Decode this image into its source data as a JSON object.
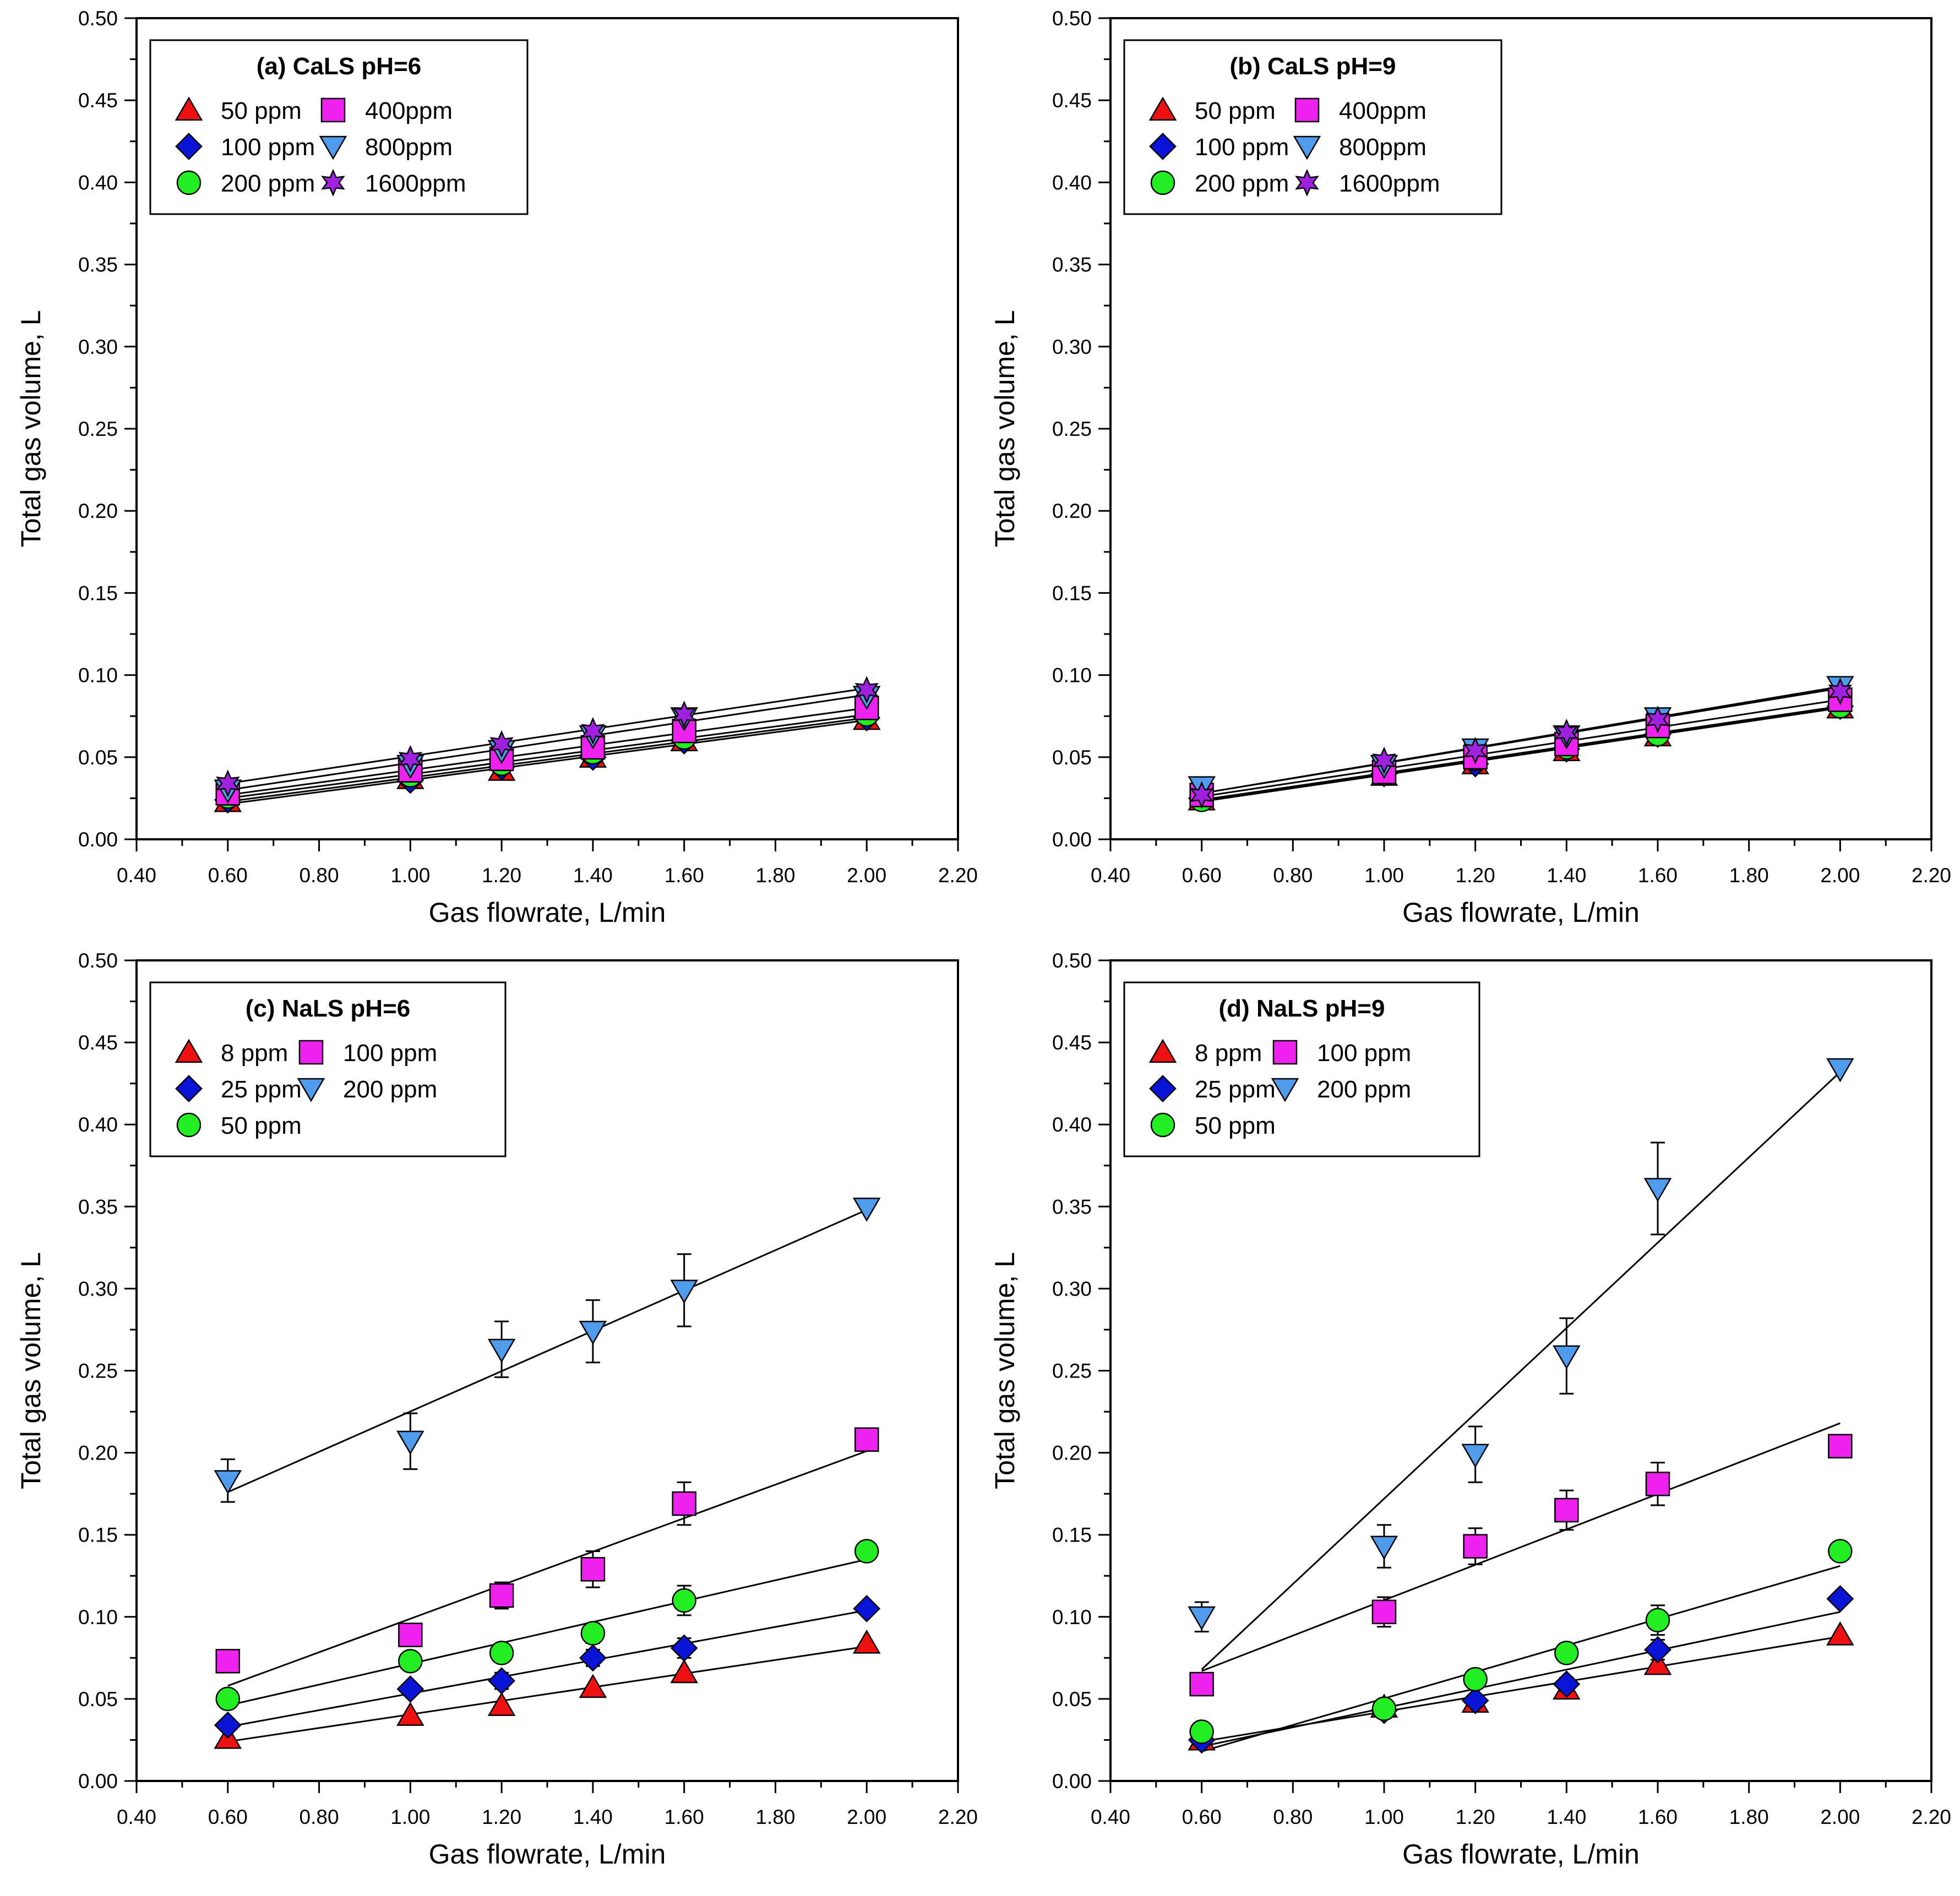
{
  "colors": {
    "red": "#ee1111",
    "blue": "#0a14d6",
    "green": "#22ee22",
    "magenta": "#ee22ee",
    "lightblue": "#4f9bec",
    "purple": "#a020e0"
  },
  "chart_data": [
    {
      "type": "scatter",
      "title": "(a) CaLS pH=6",
      "xlabel": "Gas flowrate, L/min",
      "ylabel": "Total gas volume, L",
      "xlim": [
        0.4,
        2.2
      ],
      "ylim": [
        0.0,
        0.5
      ],
      "x_ticks": [
        "0.40",
        "0.60",
        "0.80",
        "1.00",
        "1.20",
        "1.40",
        "1.60",
        "1.80",
        "2.00",
        "2.20"
      ],
      "y_ticks": [
        "0.00",
        "0.05",
        "0.10",
        "0.15",
        "0.20",
        "0.25",
        "0.30",
        "0.35",
        "0.40",
        "0.45",
        "0.50"
      ],
      "legend_position": "top-left",
      "series": [
        {
          "name": "50 ppm",
          "marker": "triangle-up",
          "color": "red",
          "x": [
            0.6,
            1.0,
            1.2,
            1.4,
            1.6,
            2.0
          ],
          "y": [
            0.023,
            0.037,
            0.042,
            0.05,
            0.06,
            0.073
          ],
          "err": [
            0,
            0,
            0,
            0,
            0,
            0
          ],
          "fit": [
            0.0215,
            0.0725
          ]
        },
        {
          "name": "100 ppm",
          "marker": "diamond",
          "color": "blue",
          "x": [
            0.6,
            1.0,
            1.2,
            1.4,
            1.6,
            2.0
          ],
          "y": [
            0.024,
            0.036,
            0.044,
            0.05,
            0.06,
            0.074
          ],
          "err": [
            0,
            0,
            0,
            0,
            0,
            0
          ],
          "fit": [
            0.023,
            0.074
          ]
        },
        {
          "name": "200 ppm",
          "marker": "circle",
          "color": "green",
          "x": [
            0.6,
            1.0,
            1.2,
            1.4,
            1.6,
            2.0
          ],
          "y": [
            0.026,
            0.039,
            0.046,
            0.053,
            0.062,
            0.076
          ],
          "err": [
            0,
            0,
            0,
            0,
            0,
            0
          ],
          "fit": [
            0.025,
            0.076
          ]
        },
        {
          "name": "400ppm",
          "marker": "square",
          "color": "magenta",
          "x": [
            0.6,
            1.0,
            1.2,
            1.4,
            1.6,
            2.0
          ],
          "y": [
            0.028,
            0.042,
            0.049,
            0.056,
            0.066,
            0.08
          ],
          "err": [
            0,
            0,
            0,
            0,
            0,
            0
          ],
          "fit": [
            0.027,
            0.08
          ]
        },
        {
          "name": "800ppm",
          "marker": "triangle-down",
          "color": "lightblue",
          "x": [
            0.6,
            1.0,
            1.2,
            1.4,
            1.6,
            2.0
          ],
          "y": [
            0.03,
            0.045,
            0.054,
            0.063,
            0.074,
            0.087
          ],
          "err": [
            0,
            0,
            0,
            0,
            0,
            0
          ],
          "fit": [
            0.03,
            0.088
          ]
        },
        {
          "name": "1600ppm",
          "marker": "star",
          "color": "purple",
          "x": [
            0.6,
            1.0,
            1.2,
            1.4,
            1.6,
            2.0
          ],
          "y": [
            0.034,
            0.049,
            0.058,
            0.066,
            0.076,
            0.091
          ],
          "err": [
            0,
            0,
            0,
            0,
            0,
            0
          ],
          "fit": [
            0.034,
            0.092
          ]
        }
      ]
    },
    {
      "type": "scatter",
      "title": "(b) CaLS pH=9",
      "xlabel": "Gas flowrate, L/min",
      "ylabel": "Total gas volume, L",
      "xlim": [
        0.4,
        2.2
      ],
      "ylim": [
        0.0,
        0.5
      ],
      "x_ticks": [
        "0.40",
        "0.60",
        "0.80",
        "1.00",
        "1.20",
        "1.40",
        "1.60",
        "1.80",
        "2.00",
        "2.20"
      ],
      "y_ticks": [
        "0.00",
        "0.05",
        "0.10",
        "0.15",
        "0.20",
        "0.25",
        "0.30",
        "0.35",
        "0.40",
        "0.45",
        "0.50"
      ],
      "legend_position": "top-left",
      "series": [
        {
          "name": "50 ppm",
          "marker": "triangle-up",
          "color": "red",
          "x": [
            0.6,
            1.0,
            1.2,
            1.4,
            1.6,
            2.0
          ],
          "y": [
            0.024,
            0.039,
            0.046,
            0.054,
            0.063,
            0.08
          ],
          "err": [
            0,
            0,
            0,
            0,
            0,
            0
          ],
          "fit": [
            0.023,
            0.08
          ]
        },
        {
          "name": "100 ppm",
          "marker": "diamond",
          "color": "blue",
          "x": [
            0.6,
            1.0,
            1.2,
            1.4,
            1.6,
            2.0
          ],
          "y": [
            0.025,
            0.04,
            0.046,
            0.055,
            0.064,
            0.081
          ],
          "err": [
            0,
            0,
            0,
            0,
            0,
            0
          ],
          "fit": [
            0.024,
            0.081
          ]
        },
        {
          "name": "200 ppm",
          "marker": "circle",
          "color": "green",
          "x": [
            0.6,
            1.0,
            1.2,
            1.4,
            1.6,
            2.0
          ],
          "y": [
            0.024,
            0.04,
            0.049,
            0.056,
            0.064,
            0.081
          ],
          "err": [
            0,
            0,
            0,
            0,
            0,
            0
          ],
          "fit": [
            0.024,
            0.081
          ]
        },
        {
          "name": "400ppm",
          "marker": "square",
          "color": "magenta",
          "x": [
            0.6,
            1.0,
            1.2,
            1.4,
            1.6,
            2.0
          ],
          "y": [
            0.027,
            0.041,
            0.05,
            0.058,
            0.069,
            0.085
          ],
          "err": [
            0,
            0,
            0,
            0,
            0,
            0
          ],
          "fit": [
            0.026,
            0.085
          ]
        },
        {
          "name": "800ppm",
          "marker": "triangle-down",
          "color": "lightblue",
          "x": [
            0.6,
            1.0,
            1.2,
            1.4,
            1.6,
            2.0
          ],
          "y": [
            0.032,
            0.045,
            0.055,
            0.063,
            0.074,
            0.093
          ],
          "err": [
            0,
            0,
            0,
            0,
            0,
            0
          ],
          "fit": [
            0.028,
            0.093
          ]
        },
        {
          "name": "1600ppm",
          "marker": "star",
          "color": "purple",
          "x": [
            0.6,
            1.0,
            1.2,
            1.4,
            1.6,
            2.0
          ],
          "y": [
            0.027,
            0.048,
            0.054,
            0.065,
            0.073,
            0.09
          ],
          "err": [
            0,
            0,
            0,
            0,
            0,
            0
          ],
          "fit": [
            0.028,
            0.092
          ]
        }
      ]
    },
    {
      "type": "scatter",
      "title": "(c) NaLS pH=6",
      "xlabel": "Gas flowrate, L/min",
      "ylabel": "Total gas volume, L",
      "xlim": [
        0.4,
        2.2
      ],
      "ylim": [
        0.0,
        0.5
      ],
      "x_ticks": [
        "0.40",
        "0.60",
        "0.80",
        "1.00",
        "1.20",
        "1.40",
        "1.60",
        "1.80",
        "2.00",
        "2.20"
      ],
      "y_ticks": [
        "0.00",
        "0.05",
        "0.10",
        "0.15",
        "0.20",
        "0.25",
        "0.30",
        "0.35",
        "0.40",
        "0.45",
        "0.50"
      ],
      "legend_position": "top-left",
      "series": [
        {
          "name": "8 ppm",
          "marker": "triangle-up",
          "color": "red",
          "x": [
            0.6,
            1.0,
            1.2,
            1.4,
            1.6,
            2.0
          ],
          "y": [
            0.026,
            0.04,
            0.046,
            0.057,
            0.066,
            0.084
          ],
          "err": [
            0,
            0,
            0,
            0,
            0,
            0
          ],
          "fit": [
            0.024,
            0.082
          ]
        },
        {
          "name": "25 ppm",
          "marker": "diamond",
          "color": "blue",
          "x": [
            0.6,
            1.0,
            1.2,
            1.4,
            1.6,
            2.0
          ],
          "y": [
            0.034,
            0.056,
            0.061,
            0.075,
            0.081,
            0.105
          ],
          "err": [
            0,
            0,
            0.005,
            0.005,
            0.006,
            0
          ],
          "fit": [
            0.033,
            0.104
          ]
        },
        {
          "name": "50 ppm",
          "marker": "circle",
          "color": "green",
          "x": [
            0.6,
            1.0,
            1.2,
            1.4,
            1.6,
            2.0
          ],
          "y": [
            0.05,
            0.073,
            0.078,
            0.09,
            0.11,
            0.14
          ],
          "err": [
            0,
            0,
            0,
            0.006,
            0.009,
            0
          ],
          "fit": [
            0.046,
            0.135
          ]
        },
        {
          "name": "100 ppm",
          "marker": "square",
          "color": "magenta",
          "x": [
            0.6,
            1.0,
            1.2,
            1.4,
            1.6,
            2.0
          ],
          "y": [
            0.073,
            0.089,
            0.113,
            0.129,
            0.169,
            0.208
          ],
          "err": [
            0,
            0,
            0.008,
            0.011,
            0.013,
            0
          ],
          "fit": [
            0.058,
            0.201
          ]
        },
        {
          "name": "200 ppm",
          "marker": "triangle-down",
          "color": "lightblue",
          "x": [
            0.6,
            1.0,
            1.2,
            1.4,
            1.6,
            2.0
          ],
          "y": [
            0.183,
            0.207,
            0.263,
            0.274,
            0.299,
            0.349
          ],
          "err": [
            0.013,
            0.017,
            0.017,
            0.019,
            0.022,
            0
          ],
          "fit": [
            0.176,
            0.348
          ]
        }
      ]
    },
    {
      "type": "scatter",
      "title": "(d) NaLS pH=9",
      "xlabel": "Gas flowrate, L/min",
      "ylabel": "Total gas volume, L",
      "xlim": [
        0.4,
        2.2
      ],
      "ylim": [
        0.0,
        0.5
      ],
      "x_ticks": [
        "0.40",
        "0.60",
        "0.80",
        "1.00",
        "1.20",
        "1.40",
        "1.60",
        "1.80",
        "2.00",
        "2.20"
      ],
      "y_ticks": [
        "0.00",
        "0.05",
        "0.10",
        "0.15",
        "0.20",
        "0.25",
        "0.30",
        "0.35",
        "0.40",
        "0.45",
        "0.50"
      ],
      "legend_position": "top-left",
      "series": [
        {
          "name": "8 ppm",
          "marker": "triangle-up",
          "color": "red",
          "x": [
            0.6,
            1.0,
            1.2,
            1.4,
            1.6,
            2.0
          ],
          "y": [
            0.025,
            0.045,
            0.048,
            0.056,
            0.071,
            0.089
          ],
          "err": [
            0,
            0,
            0,
            0,
            0,
            0
          ],
          "fit": [
            0.024,
            0.088
          ]
        },
        {
          "name": "25 ppm",
          "marker": "diamond",
          "color": "blue",
          "x": [
            0.6,
            1.0,
            1.2,
            1.4,
            1.6,
            2.0
          ],
          "y": [
            0.025,
            0.043,
            0.049,
            0.059,
            0.08,
            0.111
          ],
          "err": [
            0,
            0,
            0,
            0.004,
            0.006,
            0
          ],
          "fit": [
            0.021,
            0.103
          ]
        },
        {
          "name": "50 ppm",
          "marker": "circle",
          "color": "green",
          "x": [
            0.6,
            1.0,
            1.2,
            1.4,
            1.6,
            2.0
          ],
          "y": [
            0.03,
            0.044,
            0.062,
            0.078,
            0.098,
            0.14
          ],
          "err": [
            0,
            0,
            0,
            0.004,
            0.009,
            0
          ],
          "fit": [
            0.018,
            0.131
          ]
        },
        {
          "name": "100 ppm",
          "marker": "square",
          "color": "magenta",
          "x": [
            0.6,
            1.0,
            1.2,
            1.4,
            1.6,
            2.0
          ],
          "y": [
            0.059,
            0.103,
            0.143,
            0.165,
            0.181,
            0.204
          ],
          "err": [
            0,
            0.009,
            0.011,
            0.012,
            0.013,
            0
          ],
          "fit": [
            0.067,
            0.218
          ]
        },
        {
          "name": "200 ppm",
          "marker": "triangle-down",
          "color": "lightblue",
          "x": [
            0.6,
            1.0,
            1.2,
            1.4,
            1.6,
            2.0
          ],
          "y": [
            0.1,
            0.143,
            0.199,
            0.259,
            0.361,
            0.434
          ],
          "err": [
            0.009,
            0.013,
            0.017,
            0.023,
            0.028,
            0
          ],
          "fit": [
            0.068,
            0.432
          ]
        }
      ]
    }
  ]
}
